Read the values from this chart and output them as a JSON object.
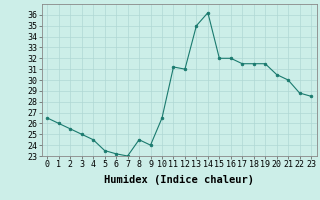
{
  "x": [
    0,
    1,
    2,
    3,
    4,
    5,
    6,
    7,
    8,
    9,
    10,
    11,
    12,
    13,
    14,
    15,
    16,
    17,
    18,
    19,
    20,
    21,
    22,
    23
  ],
  "y": [
    26.5,
    26.0,
    25.5,
    25.0,
    24.5,
    23.5,
    23.2,
    23.0,
    24.5,
    24.0,
    26.5,
    31.2,
    31.0,
    35.0,
    36.2,
    32.0,
    32.0,
    31.5,
    31.5,
    31.5,
    30.5,
    30.0,
    28.8,
    28.5
  ],
  "line_color": "#1a7a6e",
  "marker": "o",
  "marker_size": 2,
  "bg_color": "#cceee8",
  "grid_color": "#b0d8d4",
  "xlabel": "Humidex (Indice chaleur)",
  "ylim": [
    23,
    37
  ],
  "xlim": [
    -0.5,
    23.5
  ],
  "yticks": [
    23,
    24,
    25,
    26,
    27,
    28,
    29,
    30,
    31,
    32,
    33,
    34,
    35,
    36
  ],
  "xticks": [
    0,
    1,
    2,
    3,
    4,
    5,
    6,
    7,
    8,
    9,
    10,
    11,
    12,
    13,
    14,
    15,
    16,
    17,
    18,
    19,
    20,
    21,
    22,
    23
  ],
  "tick_label_fontsize": 6,
  "xlabel_fontsize": 7.5
}
